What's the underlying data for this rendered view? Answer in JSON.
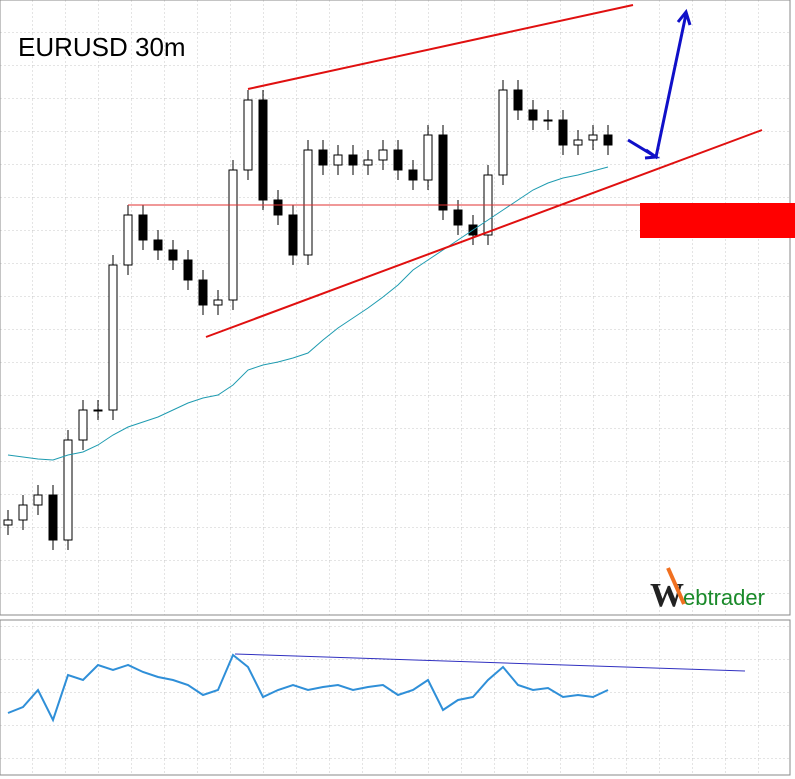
{
  "chart_data": [
    {
      "type": "candlestick",
      "title": "EURUSD 30m",
      "watermark": {
        "initial": "W",
        "rest": "ebtrader"
      },
      "ylim": [
        0,
        615
      ],
      "open": [
        90,
        95,
        110,
        120,
        75,
        175,
        205,
        205,
        350,
        400,
        375,
        365,
        355,
        335,
        310,
        315,
        445,
        515,
        415,
        400,
        360,
        465,
        450,
        460,
        450,
        455,
        465,
        445,
        435,
        480,
        405,
        390,
        380,
        440,
        525,
        505,
        495,
        495,
        470,
        475,
        480
      ],
      "high": [
        105,
        120,
        130,
        130,
        185,
        215,
        215,
        360,
        410,
        410,
        385,
        375,
        365,
        345,
        325,
        455,
        525,
        525,
        425,
        410,
        475,
        475,
        470,
        470,
        465,
        475,
        475,
        455,
        490,
        490,
        415,
        400,
        450,
        535,
        535,
        515,
        505,
        505,
        485,
        490,
        490
      ],
      "low": [
        80,
        85,
        100,
        65,
        65,
        165,
        195,
        195,
        340,
        365,
        355,
        345,
        325,
        300,
        300,
        305,
        435,
        405,
        390,
        350,
        350,
        440,
        440,
        440,
        440,
        445,
        435,
        425,
        425,
        395,
        380,
        370,
        370,
        430,
        495,
        485,
        485,
        460,
        460,
        465,
        460
      ],
      "close": [
        95,
        110,
        120,
        75,
        175,
        205,
        205,
        350,
        400,
        375,
        365,
        355,
        335,
        310,
        315,
        445,
        515,
        415,
        400,
        360,
        465,
        450,
        460,
        450,
        455,
        465,
        445,
        435,
        480,
        405,
        390,
        380,
        440,
        525,
        505,
        495,
        495,
        470,
        475,
        480,
        470
      ],
      "series": [
        {
          "color": "#1e9bb0",
          "values": [
            160,
            158,
            156,
            155,
            160,
            163,
            170,
            180,
            188,
            193,
            198,
            205,
            212,
            217,
            220,
            230,
            245,
            250,
            253,
            257,
            262,
            275,
            287,
            297,
            307,
            318,
            330,
            345,
            355,
            365,
            375,
            385,
            395,
            405,
            415,
            425,
            432,
            437,
            440,
            444,
            448
          ]
        }
      ]
    },
    {
      "type": "line",
      "ylim": [
        0,
        155
      ],
      "series": [
        {
          "color": "#2f8fd8",
          "values": [
            62,
            68,
            85,
            55,
            100,
            95,
            110,
            105,
            110,
            103,
            98,
            95,
            90,
            80,
            85,
            120,
            108,
            78,
            85,
            90,
            85,
            88,
            90,
            85,
            88,
            90,
            80,
            85,
            95,
            65,
            75,
            78,
            95,
            108,
            90,
            85,
            87,
            78,
            80,
            78,
            85
          ]
        }
      ]
    }
  ]
}
